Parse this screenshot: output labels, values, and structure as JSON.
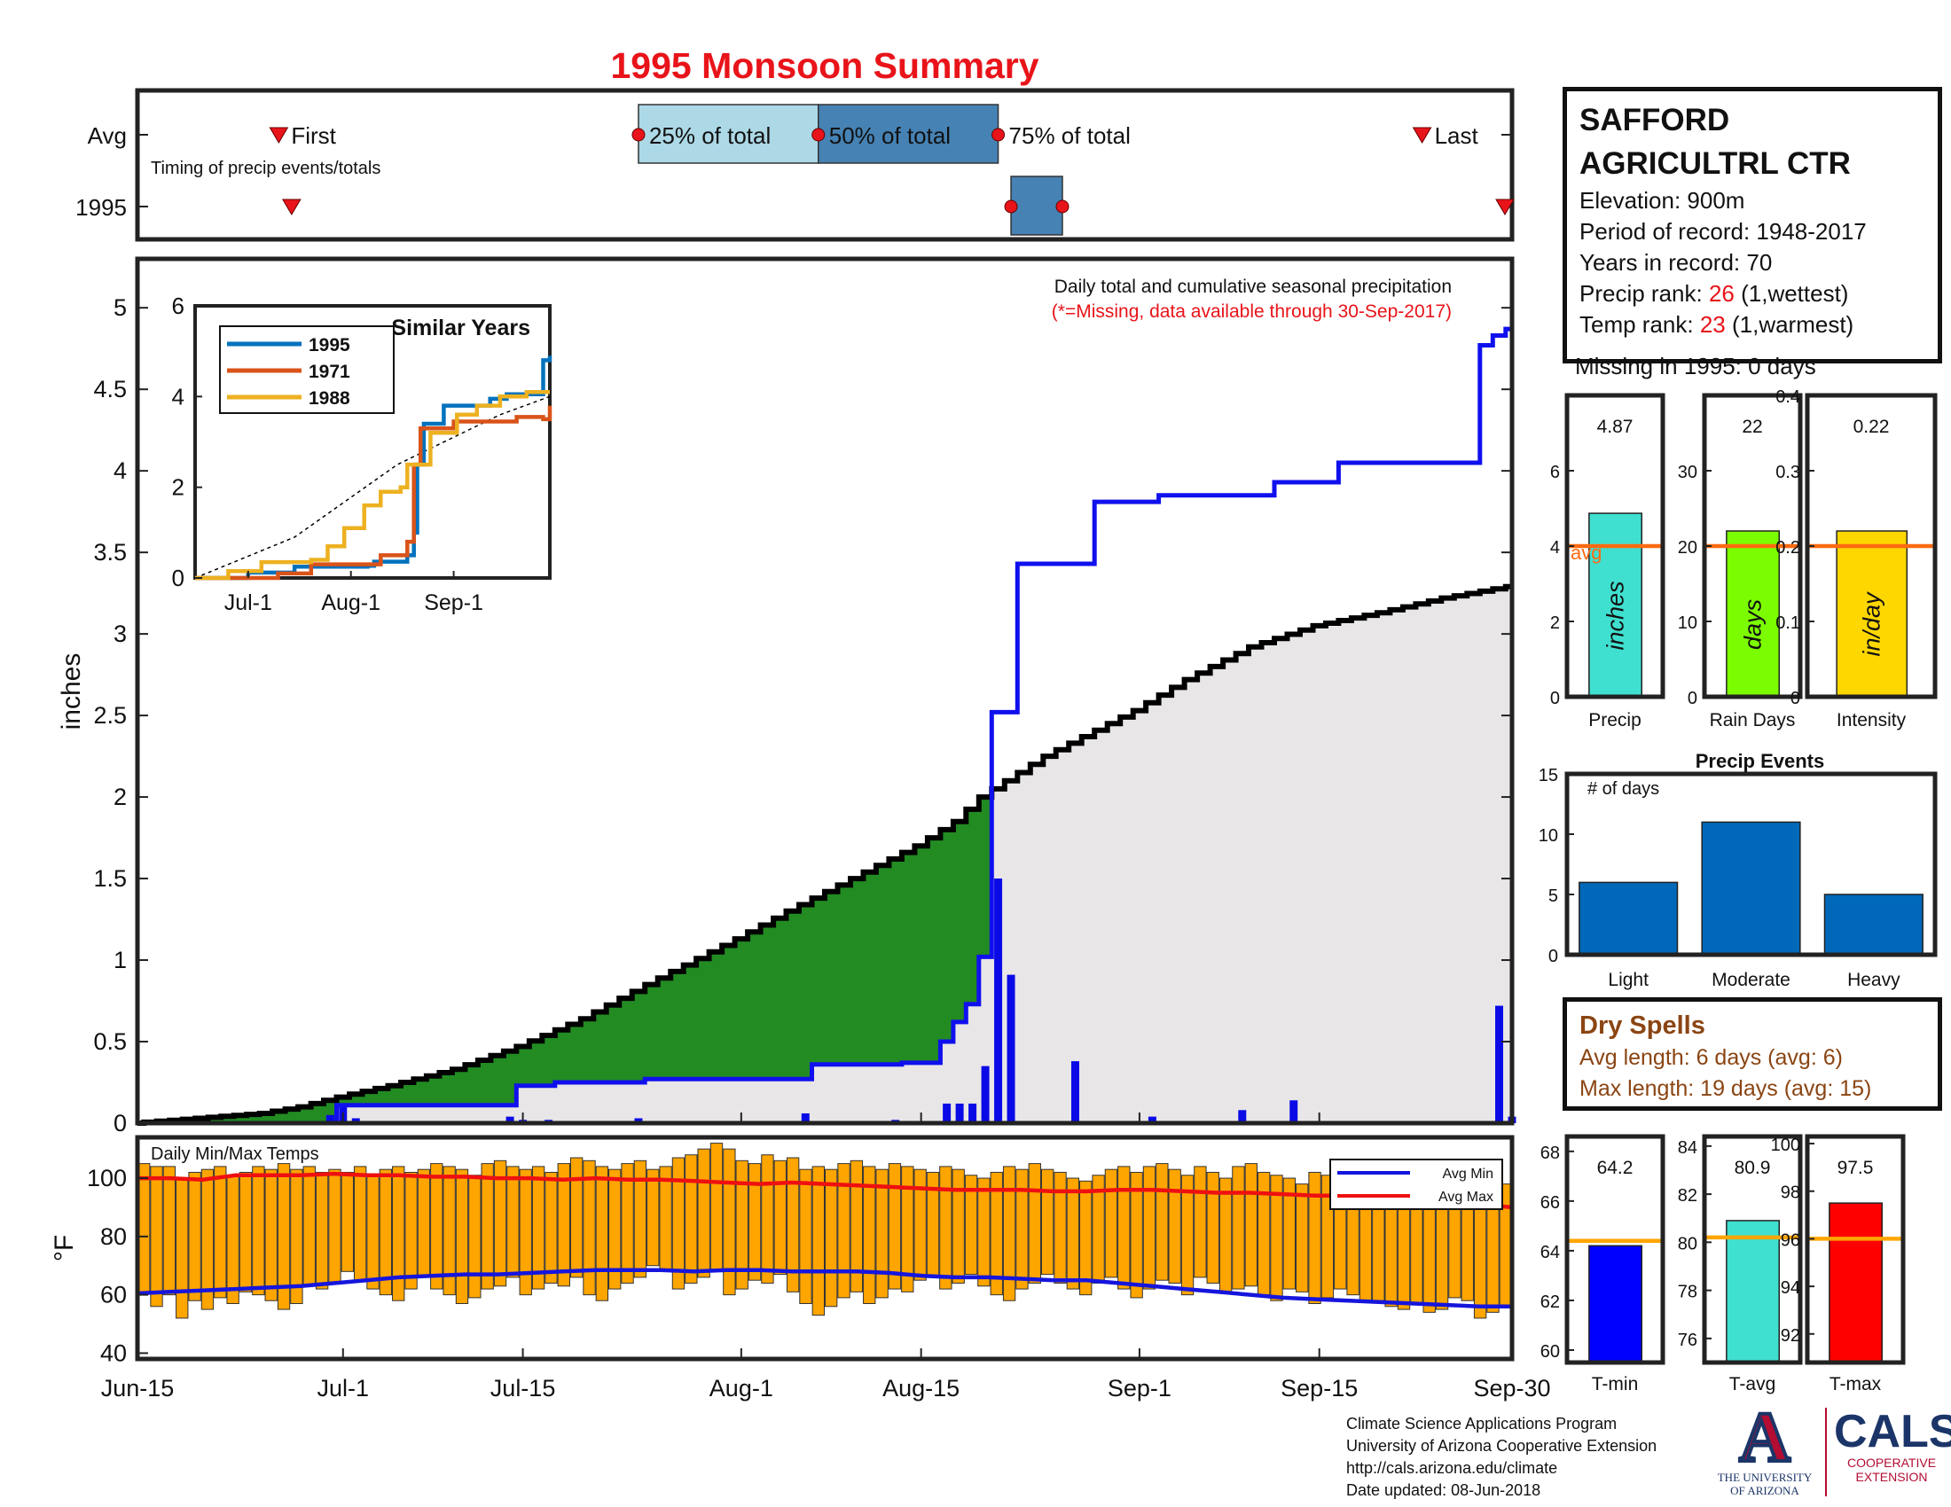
{
  "title": "1995 Monsoon Summary",
  "colors": {
    "title": "#e8141a",
    "cum_line": "#000000",
    "avg_line": "#1010ee",
    "deficit_fill": "#b8860b",
    "surplus_fill": "#228b22",
    "background_fill": "#e8e6e6",
    "daily_bars": "#0a0ae6",
    "temp_bars": "#ffa500",
    "avg_min": "#1515dd",
    "avg_max": "#ee1010",
    "avg_ref_line": "#ff6a10",
    "bar_blue": "#0068b8"
  },
  "station": {
    "name_line1": "SAFFORD",
    "name_line2": "AGRICULTRL CTR",
    "elevation": "Elevation: 900m",
    "period": "Period of record: 1948-2017",
    "years": "Years in record: 70",
    "precip_rank_prefix": "Precip rank: ",
    "precip_rank_value": "26",
    "precip_rank_suffix": " (1,wettest)",
    "temp_rank_prefix": "Temp rank: ",
    "temp_rank_value": "23",
    "temp_rank_suffix": " (1,warmest)",
    "missing": "Missing in 1995: 0 days"
  },
  "dry_spells": {
    "title": "Dry Spells",
    "avg": "Avg length: 6 days (avg: 6)",
    "max": "Max length: 19 days (avg: 15)"
  },
  "footer": {
    "line1": "Climate Science Applications Program",
    "line2": "University of Arizona Cooperative Extension",
    "line3": "http://cals.arizona.edu/climate",
    "line4": " Date updated: 08-Jun-2018"
  },
  "logos": {
    "ua_mark": "A",
    "ua_line1": "THE UNIVERSITY",
    "ua_line2": "OF ARIZONA",
    "cals": "CALS",
    "cals_line1": "COOPERATIVE",
    "cals_line2": "EXTENSION"
  },
  "chart_data": [
    {
      "type": "timeline",
      "rows": [
        "Avg",
        "1995"
      ],
      "annotation": "Timing of precip events/totals",
      "labels": {
        "first": "First",
        "p25": "25% of total",
        "p50": "50% of total",
        "p75": "75% of total",
        "last": "Last"
      },
      "avg": {
        "first": "2018-06-26",
        "p25": "2018-07-24",
        "p50": "2018-08-07",
        "p75": "2018-08-21",
        "last": "2018-09-23"
      },
      "y1995": {
        "first": "2018-06-27",
        "p25": "2018-08-22",
        "p50": "2018-08-22",
        "p75": "2018-08-26",
        "last": "2018-09-30"
      }
    },
    {
      "type": "area",
      "description_text": "Daily total and cumulative seasonal precipitation",
      "note": "(*=Missing, data available through 30-Sep-2017)",
      "ylabel": "inches",
      "ylim": [
        0,
        5.3
      ],
      "yticks": [
        "0",
        "0.5",
        "1",
        "1.5",
        "2",
        "2.5",
        "3",
        "3.5",
        "4",
        "4.5",
        "5"
      ],
      "x_start": "2018-06-15",
      "x_end": "2018-09-30",
      "xticks": [
        {
          "date": "2018-06-15",
          "label": "Jun-15"
        },
        {
          "date": "2018-07-01",
          "label": "Jul-1"
        },
        {
          "date": "2018-07-15",
          "label": "Jul-15"
        },
        {
          "date": "2018-08-01",
          "label": "Aug-1"
        },
        {
          "date": "2018-08-15",
          "label": "Aug-15"
        },
        {
          "date": "2018-09-01",
          "label": "Sep-1"
        },
        {
          "date": "2018-09-15",
          "label": "Sep-15"
        },
        {
          "date": "2018-09-30",
          "label": "Sep-30"
        }
      ],
      "avg_cumulative": [
        [
          "2018-06-15",
          0.0
        ],
        [
          "2018-06-20",
          0.03
        ],
        [
          "2018-06-25",
          0.06
        ],
        [
          "2018-06-28",
          0.1
        ],
        [
          "2018-07-01",
          0.16
        ],
        [
          "2018-07-05",
          0.23
        ],
        [
          "2018-07-10",
          0.33
        ],
        [
          "2018-07-15",
          0.47
        ],
        [
          "2018-07-20",
          0.64
        ],
        [
          "2018-07-25",
          0.85
        ],
        [
          "2018-07-30",
          1.05
        ],
        [
          "2018-08-01",
          1.13
        ],
        [
          "2018-08-05",
          1.3
        ],
        [
          "2018-08-10",
          1.5
        ],
        [
          "2018-08-15",
          1.7
        ],
        [
          "2018-08-18",
          1.85
        ],
        [
          "2018-08-20",
          2.0
        ],
        [
          "2018-08-25",
          2.25
        ],
        [
          "2018-08-30",
          2.45
        ],
        [
          "2018-09-01",
          2.53
        ],
        [
          "2018-09-05",
          2.72
        ],
        [
          "2018-09-10",
          2.92
        ],
        [
          "2018-09-15",
          3.05
        ],
        [
          "2018-09-20",
          3.13
        ],
        [
          "2018-09-25",
          3.22
        ],
        [
          "2018-09-30",
          3.29
        ]
      ],
      "obs_cumulative": [
        [
          "2018-06-15",
          0.0
        ],
        [
          "2018-06-30",
          0.0
        ],
        [
          "2018-07-01",
          0.11
        ],
        [
          "2018-07-14",
          0.11
        ],
        [
          "2018-07-15",
          0.23
        ],
        [
          "2018-07-17",
          0.23
        ],
        [
          "2018-07-18",
          0.25
        ],
        [
          "2018-07-24",
          0.25
        ],
        [
          "2018-07-25",
          0.27
        ],
        [
          "2018-08-06",
          0.27
        ],
        [
          "2018-08-07",
          0.36
        ],
        [
          "2018-08-13",
          0.36
        ],
        [
          "2018-08-14",
          0.37
        ],
        [
          "2018-08-16",
          0.37
        ],
        [
          "2018-08-17",
          0.5
        ],
        [
          "2018-08-18",
          0.62
        ],
        [
          "2018-08-19",
          0.73
        ],
        [
          "2018-08-20",
          1.02
        ],
        [
          "2018-08-21",
          2.52
        ],
        [
          "2018-08-22",
          2.52
        ],
        [
          "2018-08-23",
          3.43
        ],
        [
          "2018-08-28",
          3.43
        ],
        [
          "2018-08-29",
          3.81
        ],
        [
          "2018-09-02",
          3.81
        ],
        [
          "2018-09-03",
          3.85
        ],
        [
          "2018-09-11",
          3.85
        ],
        [
          "2018-09-12",
          3.93
        ],
        [
          "2018-09-16",
          3.93
        ],
        [
          "2018-09-17",
          4.05
        ],
        [
          "2018-09-27",
          4.05
        ],
        [
          "2018-09-28",
          4.77
        ],
        [
          "2018-09-29",
          4.83
        ],
        [
          "2018-09-30",
          4.87
        ]
      ],
      "daily_bars": [
        [
          "2018-06-30",
          0.05
        ],
        [
          "2018-07-01",
          0.1
        ],
        [
          "2018-07-02",
          0.03
        ],
        [
          "2018-07-14",
          0.04
        ],
        [
          "2018-07-15",
          0.02
        ],
        [
          "2018-07-17",
          0.02
        ],
        [
          "2018-07-24",
          0.03
        ],
        [
          "2018-08-06",
          0.06
        ],
        [
          "2018-08-13",
          0.02
        ],
        [
          "2018-08-17",
          0.12
        ],
        [
          "2018-08-18",
          0.12
        ],
        [
          "2018-08-19",
          0.12
        ],
        [
          "2018-08-20",
          0.35
        ],
        [
          "2018-08-21",
          1.5
        ],
        [
          "2018-08-22",
          0.91
        ],
        [
          "2018-08-27",
          0.38
        ],
        [
          "2018-09-02",
          0.04
        ],
        [
          "2018-09-09",
          0.08
        ],
        [
          "2018-09-13",
          0.14
        ],
        [
          "2018-09-29",
          0.72
        ],
        [
          "2018-09-30",
          0.04
        ]
      ]
    },
    {
      "type": "line",
      "title": "Similar Years",
      "ylim": [
        0,
        6
      ],
      "yticks": [
        "0",
        "2",
        "4",
        "6"
      ],
      "x_start": "2018-06-15",
      "x_end": "2018-09-30",
      "xticks": [
        {
          "date": "2018-07-01",
          "label": "Jul-1"
        },
        {
          "date": "2018-08-01",
          "label": "Aug-1"
        },
        {
          "date": "2018-09-01",
          "label": "Sep-1"
        }
      ],
      "series": [
        {
          "name": "1995",
          "color": "#0072bd",
          "points": [
            [
              "2018-06-15",
              0.0
            ],
            [
              "2018-06-28",
              0.0
            ],
            [
              "2018-07-01",
              0.12
            ],
            [
              "2018-07-15",
              0.25
            ],
            [
              "2018-08-06",
              0.27
            ],
            [
              "2018-08-08",
              0.36
            ],
            [
              "2018-08-18",
              0.5
            ],
            [
              "2018-08-20",
              1.0
            ],
            [
              "2018-08-21",
              2.5
            ],
            [
              "2018-08-23",
              3.4
            ],
            [
              "2018-08-29",
              3.8
            ],
            [
              "2018-09-12",
              3.95
            ],
            [
              "2018-09-17",
              4.05
            ],
            [
              "2018-09-27",
              4.05
            ],
            [
              "2018-09-28",
              4.8
            ],
            [
              "2018-09-30",
              4.9
            ]
          ]
        },
        {
          "name": "1971",
          "color": "#d95319",
          "points": [
            [
              "2018-06-15",
              0.0
            ],
            [
              "2018-07-10",
              0.1
            ],
            [
              "2018-07-20",
              0.3
            ],
            [
              "2018-08-10",
              0.5
            ],
            [
              "2018-08-18",
              0.8
            ],
            [
              "2018-08-20",
              2.5
            ],
            [
              "2018-08-22",
              3.3
            ],
            [
              "2018-09-01",
              3.45
            ],
            [
              "2018-09-20",
              3.55
            ],
            [
              "2018-09-28",
              3.5
            ],
            [
              "2018-09-30",
              3.8
            ]
          ]
        },
        {
          "name": "1988",
          "color": "#edb120",
          "points": [
            [
              "2018-06-15",
              0.0
            ],
            [
              "2018-06-25",
              0.15
            ],
            [
              "2018-07-05",
              0.35
            ],
            [
              "2018-07-20",
              0.4
            ],
            [
              "2018-07-25",
              0.7
            ],
            [
              "2018-07-30",
              1.1
            ],
            [
              "2018-08-05",
              1.6
            ],
            [
              "2018-08-10",
              1.9
            ],
            [
              "2018-08-16",
              2.0
            ],
            [
              "2018-08-18",
              2.5
            ],
            [
              "2018-08-25",
              3.2
            ],
            [
              "2018-09-02",
              3.6
            ],
            [
              "2018-09-08",
              3.8
            ],
            [
              "2018-09-15",
              4.0
            ],
            [
              "2018-09-23",
              4.1
            ],
            [
              "2018-09-30",
              4.1
            ]
          ]
        }
      ],
      "reference": {
        "color": "#000000",
        "style": "dashed",
        "points": [
          [
            "2018-06-15",
            0.0
          ],
          [
            "2018-07-15",
            0.9
          ],
          [
            "2018-08-15",
            2.5
          ],
          [
            "2018-09-15",
            3.6
          ],
          [
            "2018-09-30",
            4.0
          ]
        ]
      }
    },
    {
      "type": "bar",
      "title": "Daily Min/Max Temps",
      "ylabel": "°F",
      "ylim": [
        38,
        114
      ],
      "yticks": [
        "40",
        "60",
        "80",
        "100"
      ],
      "x_start": "2018-06-15",
      "x_end": "2018-09-30",
      "legend": [
        "Avg Min",
        "Avg Max"
      ],
      "legend_position": "top-right",
      "tmax": [
        105,
        104,
        104,
        100,
        102,
        103,
        104,
        101,
        102,
        104,
        103,
        105,
        103,
        104,
        102,
        103,
        102,
        104,
        101,
        103,
        104,
        102,
        103,
        105,
        104,
        103,
        101,
        105,
        106,
        104,
        103,
        104,
        102,
        105,
        107,
        106,
        104,
        103,
        105,
        106,
        103,
        104,
        107,
        108,
        110,
        112,
        110,
        106,
        105,
        108,
        106,
        107,
        103,
        104,
        103,
        105,
        106,
        104,
        103,
        105,
        104,
        103,
        102,
        104,
        103,
        101,
        100,
        102,
        104,
        103,
        105,
        103,
        102,
        100,
        99,
        101,
        103,
        104,
        102,
        104,
        105,
        103,
        101,
        104,
        102,
        100,
        104,
        105,
        102,
        101,
        100,
        98,
        102,
        101,
        99,
        97,
        99,
        98,
        97,
        94,
        96,
        98,
        97,
        98,
        96,
        94,
        95,
        98
      ],
      "tmin": [
        61,
        56,
        60,
        52,
        58,
        55,
        59,
        57,
        61,
        60,
        58,
        55,
        57,
        63,
        62,
        64,
        68,
        65,
        62,
        60,
        58,
        62,
        66,
        62,
        60,
        57,
        59,
        62,
        63,
        66,
        60,
        62,
        64,
        63,
        66,
        60,
        58,
        62,
        64,
        66,
        70,
        68,
        62,
        64,
        66,
        68,
        60,
        62,
        65,
        64,
        67,
        61,
        57,
        53,
        56,
        59,
        61,
        57,
        59,
        62,
        61,
        65,
        66,
        62,
        64,
        67,
        63,
        60,
        58,
        62,
        64,
        67,
        64,
        62,
        60,
        64,
        66,
        62,
        59,
        62,
        65,
        64,
        60,
        66,
        64,
        61,
        62,
        63,
        60,
        58,
        62,
        61,
        57,
        59,
        62,
        60,
        58,
        58,
        56,
        55,
        57,
        54,
        55,
        59,
        58,
        52,
        54,
        56
      ],
      "avg_min": [
        60.5,
        61,
        61.5,
        62,
        62.5,
        63,
        64,
        65,
        66,
        66.5,
        67,
        67,
        67.5,
        68,
        68.5,
        68.5,
        68.5,
        68,
        68.5,
        68.5,
        68,
        68,
        68,
        67.5,
        66.5,
        66,
        66,
        65.5,
        65,
        65,
        64,
        63,
        62,
        61,
        60,
        59,
        58.5,
        58,
        57.5,
        57,
        56.5,
        56,
        56
      ],
      "avg_max": [
        100,
        100,
        99.5,
        101,
        101,
        101,
        101.5,
        101,
        101,
        100.5,
        100.5,
        100,
        100,
        99.5,
        100,
        99.5,
        99.5,
        99,
        98.5,
        98,
        98.5,
        98,
        97.5,
        97,
        96.5,
        96,
        96,
        96,
        95.5,
        95.5,
        96,
        96,
        95.5,
        95,
        95,
        94.5,
        94,
        94,
        93.5,
        93,
        92,
        91,
        90
      ]
    },
    {
      "type": "bar",
      "title": "Precip",
      "value_label": "4.87",
      "value": 4.87,
      "avg": 4.0,
      "avg_label": "avg",
      "ylim": [
        0,
        8
      ],
      "yticks": [
        "0",
        "2",
        "4",
        "6"
      ],
      "bar_text": "inches",
      "color": "#40e0d0"
    },
    {
      "type": "bar",
      "title": "Rain Days",
      "value_label": "22",
      "value": 22,
      "avg": 20,
      "ylim": [
        0,
        40
      ],
      "yticks": [
        "0",
        "10",
        "20",
        "30"
      ],
      "bar_text": "days",
      "color": "#7cfc00"
    },
    {
      "type": "bar",
      "title": "Intensity",
      "value_label": "0.22",
      "value": 0.22,
      "avg": 0.2,
      "ylim": [
        0,
        0.4
      ],
      "yticks": [
        "0",
        "0.1",
        "0.2",
        "0.3",
        "0.4"
      ],
      "bar_text": "in/day",
      "color": "#ffd700"
    },
    {
      "type": "bar",
      "title": "Precip Events",
      "ylabel": "# of days",
      "categories": [
        "Light",
        "Moderate",
        "Heavy"
      ],
      "values": [
        6,
        11,
        5
      ],
      "ylim": [
        0,
        15
      ],
      "yticks": [
        "0",
        "5",
        "10",
        "15"
      ]
    },
    {
      "type": "bar",
      "title": "T-min",
      "value_label": "64.2",
      "value": 64.2,
      "avg": 64.4,
      "ylim": [
        59.5,
        68.6
      ],
      "yticks": [
        "60",
        "62",
        "64",
        "66",
        "68"
      ],
      "color": "#0000ff"
    },
    {
      "type": "bar",
      "title": "T-avg",
      "value_label": "80.9",
      "value": 80.9,
      "avg": 80.2,
      "ylim": [
        75,
        84.4
      ],
      "yticks": [
        "76",
        "78",
        "80",
        "82",
        "84"
      ],
      "color": "#40e0d0"
    },
    {
      "type": "bar",
      "title": "T-max",
      "value_label": "97.5",
      "value": 97.5,
      "avg": 96.0,
      "ylim": [
        90.8,
        100.3
      ],
      "yticks": [
        "92",
        "94",
        "96",
        "98",
        "100"
      ],
      "color": "#ff0000"
    }
  ]
}
